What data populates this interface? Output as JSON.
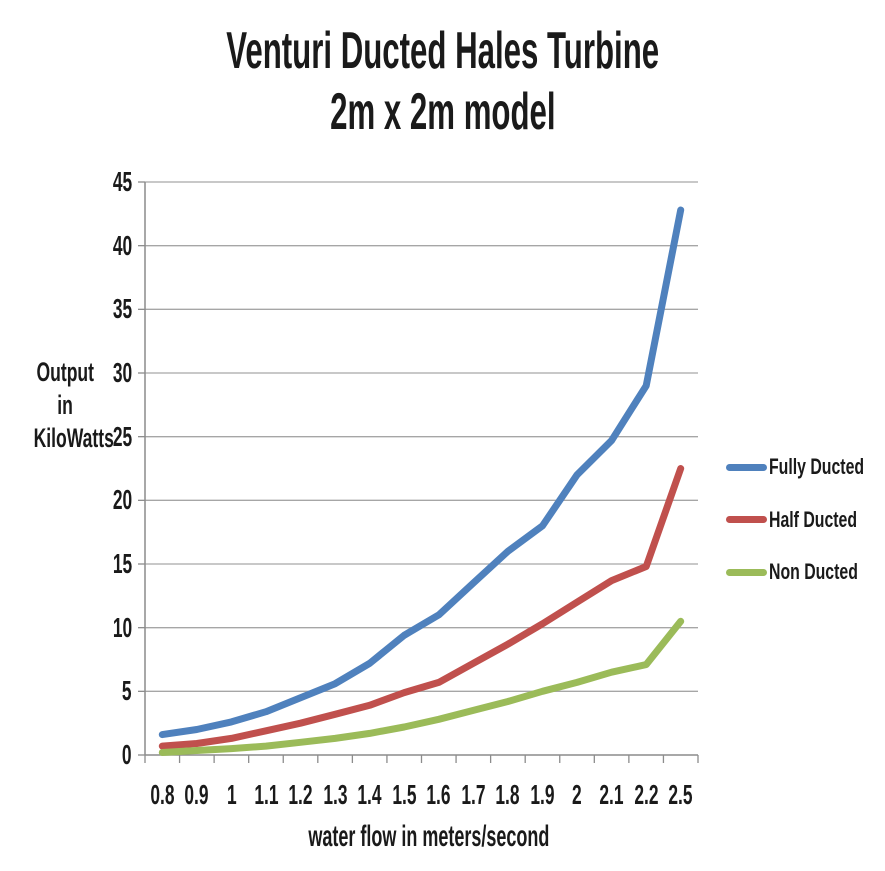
{
  "chart": {
    "title_line1": "Venturi Ducted Hales Turbine",
    "title_line2": "2m x 2m model"
  },
  "chart_data": {
    "type": "line",
    "title": "Venturi Ducted Hales Turbine 2m x 2m model",
    "title_lines": [
      "Venturi Ducted Hales Turbine",
      "2m x 2m model"
    ],
    "xlabel": "water flow in meters/second",
    "ylabel": "Output in KiloWatts",
    "ylabel_lines": [
      "Output",
      "in",
      "KiloWatts"
    ],
    "categories": [
      "0.8",
      "0.9",
      "1",
      "1.1",
      "1.2",
      "1.3",
      "1.4",
      "1.5",
      "1.6",
      "1.7",
      "1.8",
      "1.9",
      "2",
      "2.1",
      "2.2",
      "2.5"
    ],
    "series": [
      {
        "name": "Fully Ducted",
        "color": "#4F81BD",
        "values": [
          1.6,
          2.0,
          2.6,
          3.4,
          4.5,
          5.6,
          7.2,
          9.4,
          11.0,
          13.5,
          16.0,
          18.0,
          22.0,
          24.7,
          29.0,
          42.8
        ]
      },
      {
        "name": "Half Ducted",
        "color": "#C0504D",
        "values": [
          0.7,
          0.9,
          1.3,
          1.9,
          2.5,
          3.2,
          3.9,
          4.9,
          5.7,
          7.2,
          8.7,
          10.3,
          12.0,
          13.7,
          14.8,
          22.5
        ]
      },
      {
        "name": "Non Ducted",
        "color": "#9BBB59",
        "values": [
          0.2,
          0.35,
          0.5,
          0.7,
          1.0,
          1.3,
          1.7,
          2.2,
          2.8,
          3.5,
          4.2,
          5.0,
          5.7,
          6.5,
          7.1,
          10.5
        ]
      }
    ],
    "ylim": [
      0,
      45
    ],
    "ytick_step": 5,
    "ytick_labels": [
      "0",
      "5",
      "10",
      "15",
      "20",
      "25",
      "30",
      "35",
      "40",
      "45"
    ],
    "grid": true,
    "legend_position": "right",
    "colors": {
      "grid": "#A6A6A6",
      "axis": "#8C8C8C",
      "text": "#1A1A1A",
      "background": "#FFFFFF"
    }
  }
}
